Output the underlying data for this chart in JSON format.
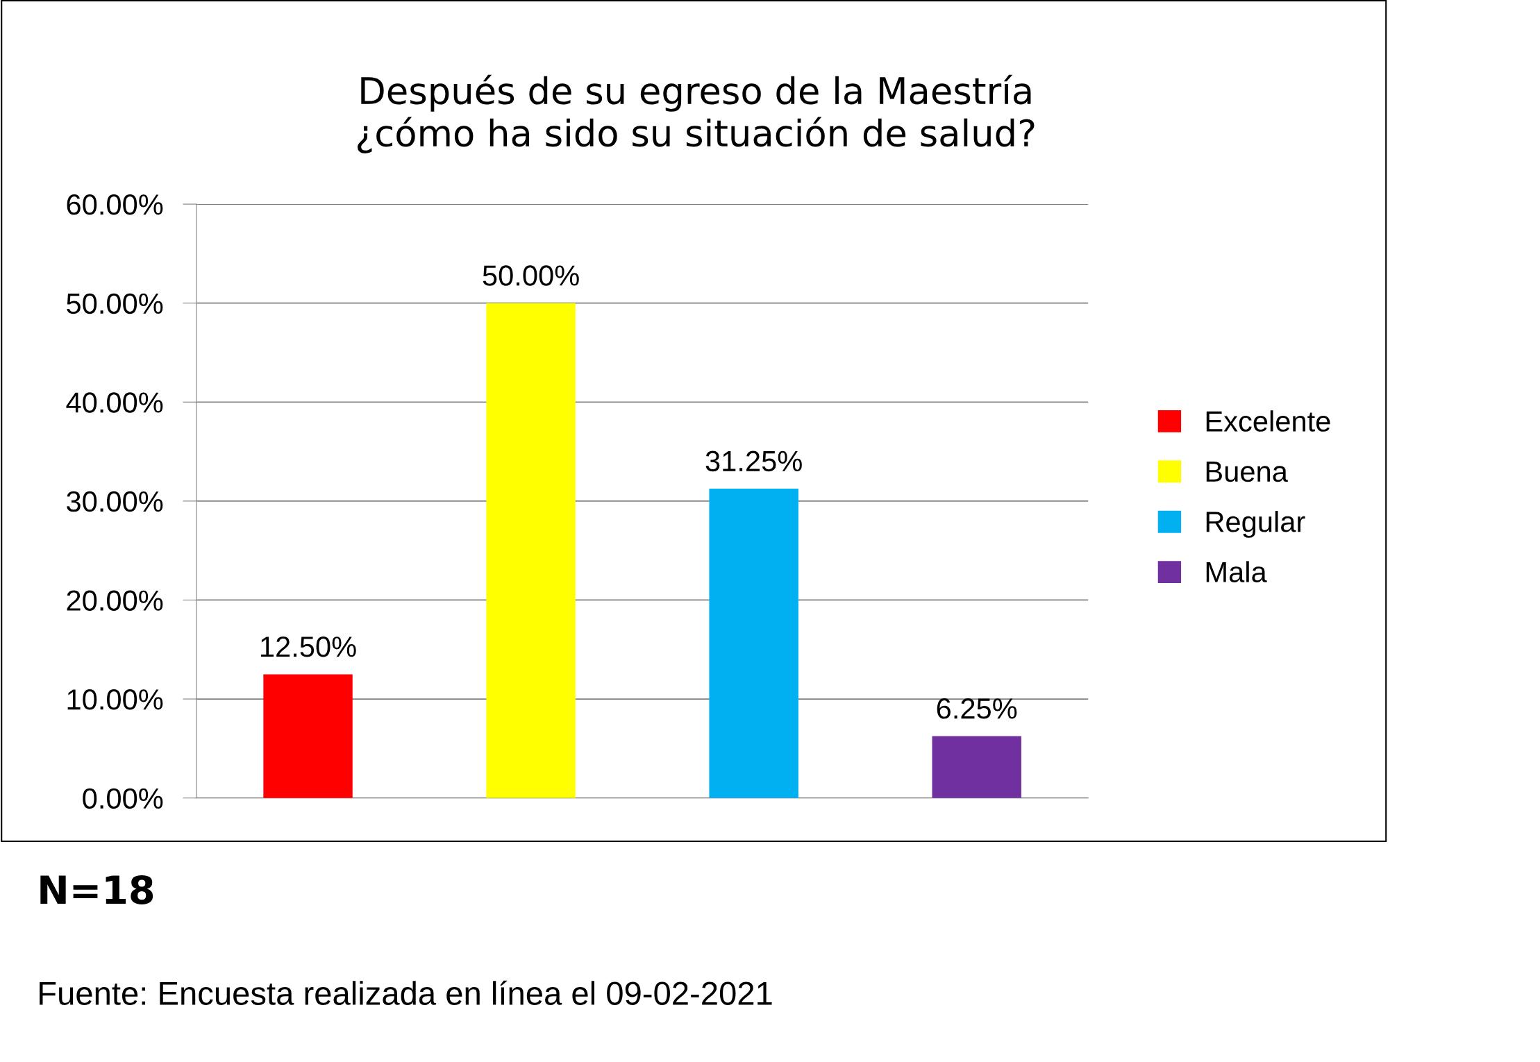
{
  "chart_data": {
    "type": "bar",
    "title": "Después de su egreso de la Maestría\n¿cómo ha sido su situación de salud?",
    "categories": [
      null,
      null,
      null,
      null
    ],
    "series": [
      {
        "name": "Excelente",
        "color": "#ff0000",
        "values": [
          12.5,
          null,
          null,
          null
        ],
        "value_labels": [
          "12.50%",
          null,
          null,
          null
        ]
      },
      {
        "name": "Buena",
        "color": "#ffff00",
        "values": [
          null,
          50,
          null,
          null
        ],
        "value_labels": [
          null,
          "50.00%",
          null,
          null
        ]
      },
      {
        "name": "Regular",
        "color": "#00b0f0",
        "values": [
          null,
          null,
          31.25,
          null
        ],
        "value_labels": [
          null,
          null,
          "31.25%",
          null
        ]
      },
      {
        "name": "Mala",
        "color": "#7030a0",
        "values": [
          null,
          null,
          null,
          6.25
        ],
        "value_labels": [
          null,
          null,
          null,
          "6.25%"
        ]
      }
    ],
    "ylim": [
      0,
      60
    ],
    "yticks": [
      {
        "value": 0,
        "label": "0.00%"
      },
      {
        "value": 10,
        "label": "10.00%"
      },
      {
        "value": 20,
        "label": "20.00%"
      },
      {
        "value": 30,
        "label": "30.00%"
      },
      {
        "value": 40,
        "label": "40.00%"
      },
      {
        "value": 50,
        "label": "50.00%"
      },
      {
        "value": 60,
        "label": "60.00%"
      }
    ],
    "grid": "y",
    "legend": "right",
    "annotations": [
      "N=18",
      "Fuente: Encuesta realizada en línea el 09-02-2021"
    ]
  }
}
